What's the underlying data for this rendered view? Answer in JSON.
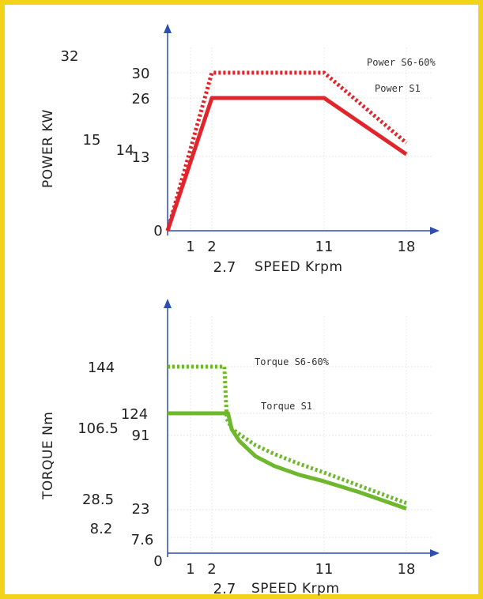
{
  "chart_data": [
    {
      "type": "line",
      "ylabel": "POWER KW",
      "xlabel": "SPEED Krpm",
      "x_ticks": [
        "1",
        "2",
        "11",
        "18"
      ],
      "x_extra_label": "2.7",
      "y_ticks_inner": [
        "30",
        "26",
        "13",
        "0"
      ],
      "y_ticks_outer": [
        "32",
        "15",
        "14"
      ],
      "series": [
        {
          "name": "Power S6-60%",
          "color": "#e0262c",
          "style": "dotted",
          "points": [
            [
              0,
              0
            ],
            [
              2,
              30
            ],
            [
              11,
              30
            ],
            [
              18,
              16
            ]
          ]
        },
        {
          "name": "Power S1",
          "color": "#e0262c",
          "style": "solid",
          "points": [
            [
              0,
              0
            ],
            [
              2,
              26
            ],
            [
              11,
              26
            ],
            [
              18,
              13.5
            ]
          ]
        }
      ],
      "xlim": [
        0,
        20
      ],
      "ylim": [
        0,
        36
      ]
    },
    {
      "type": "line",
      "ylabel": "TORQUE Nm",
      "xlabel": "SPEED Krpm",
      "x_ticks": [
        "1",
        "2",
        "11",
        "18"
      ],
      "x_extra_label": "2.7",
      "y_ticks_inner": [
        "124",
        "91",
        "23",
        "7.6"
      ],
      "y_ticks_outer": [
        "144",
        "106.5",
        "28.5",
        "8.2",
        "0"
      ],
      "series": [
        {
          "name": "Torque S6-60%",
          "color": "#6fb82e",
          "style": "dotted",
          "points": [
            [
              0,
              144
            ],
            [
              3,
              144
            ],
            [
              3.2,
              116
            ],
            [
              3.6,
              101
            ],
            [
              4.2,
              93
            ],
            [
              5.5,
              82
            ],
            [
              7,
              74
            ],
            [
              9,
              65
            ],
            [
              11,
              57
            ],
            [
              14,
              45
            ],
            [
              18,
              29
            ]
          ]
        },
        {
          "name": "Torque S1",
          "color": "#6fb82e",
          "style": "solid",
          "points": [
            [
              0,
              124
            ],
            [
              3.3,
              124
            ],
            [
              3.6,
              100
            ],
            [
              4.2,
              86
            ],
            [
              5.5,
              72
            ],
            [
              7,
              63
            ],
            [
              9,
              55
            ],
            [
              11,
              49
            ],
            [
              14,
              39
            ],
            [
              18,
              24
            ]
          ]
        }
      ],
      "xlim": [
        0,
        20
      ],
      "ylim": [
        0,
        175
      ]
    }
  ]
}
